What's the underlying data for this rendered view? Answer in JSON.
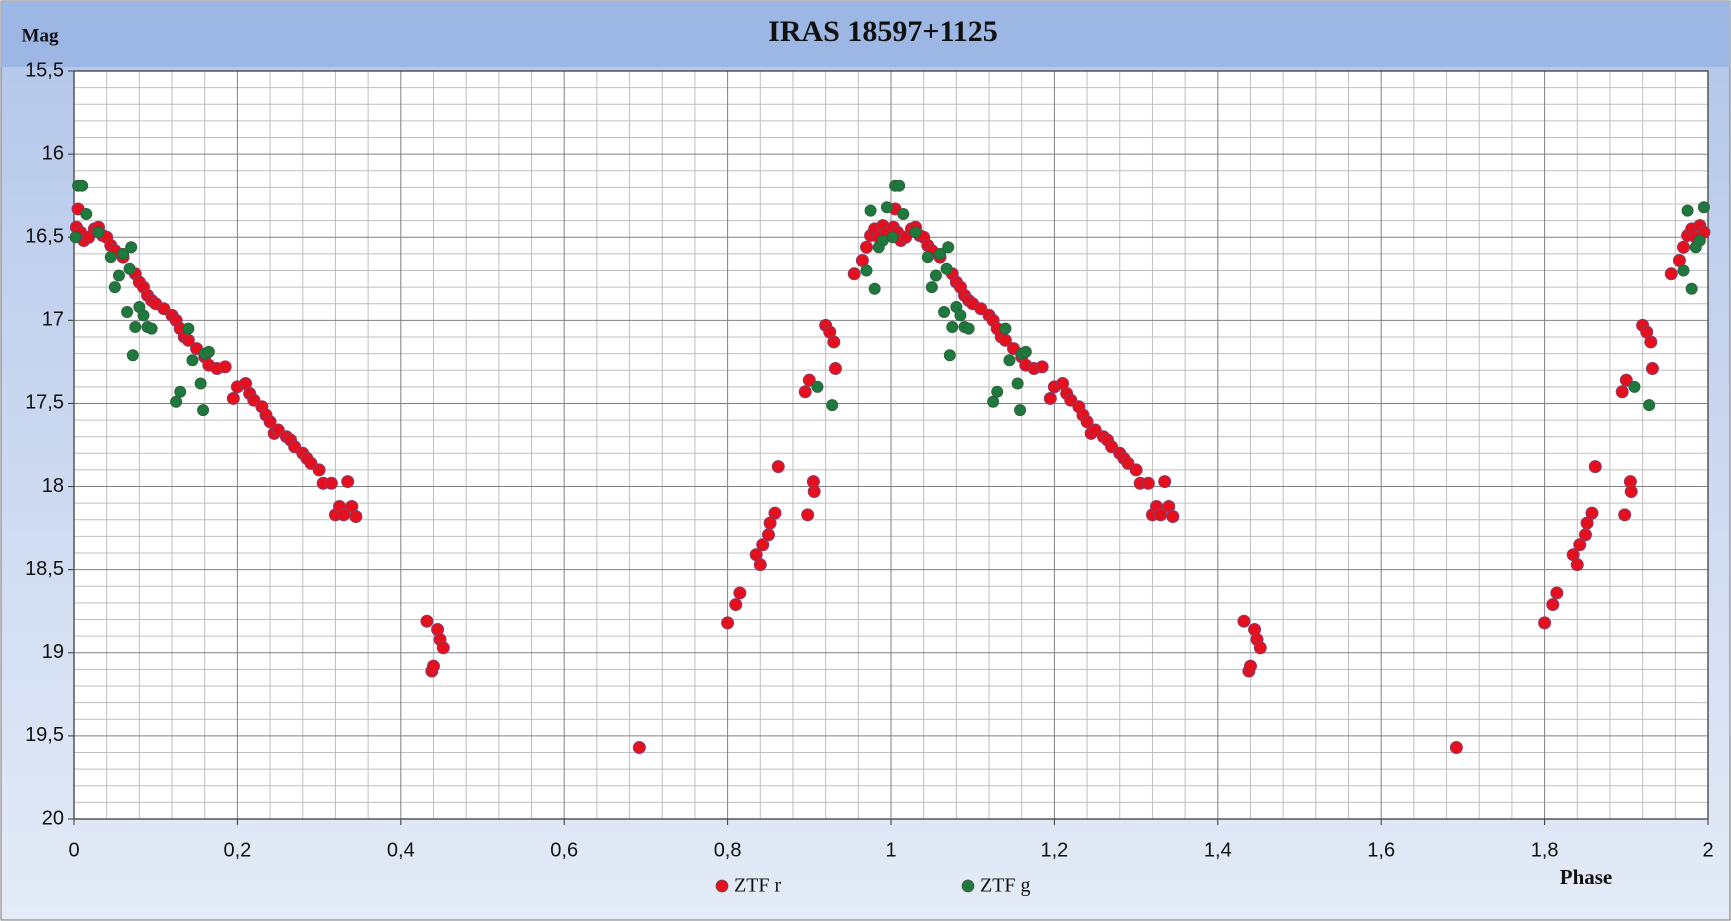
{
  "chart_data": {
    "type": "scatter",
    "title": "IRAS 18597+1125",
    "x_label": "Phase",
    "y_label": "Mag",
    "xlim": [
      0,
      2
    ],
    "ylim": [
      15.5,
      20
    ],
    "y_inverted": true,
    "grid": true,
    "legend": "bottom",
    "xticks": [
      0,
      {
        "value": 0.2,
        "label": "0,2"
      },
      {
        "value": 0.4,
        "label": "0,4"
      },
      {
        "value": 0.6,
        "label": "0,6"
      },
      {
        "value": 0.8,
        "label": "0,8"
      },
      1,
      {
        "value": 1.2,
        "label": "1,2"
      },
      {
        "value": 1.4,
        "label": "1,4"
      },
      {
        "value": 1.6,
        "label": "1,6"
      },
      {
        "value": 1.8,
        "label": "1,8"
      },
      2
    ],
    "yticks": [
      {
        "value": 15.5,
        "label": "15,5"
      },
      16,
      {
        "value": 16.5,
        "label": "16,5"
      },
      17,
      {
        "value": 17.5,
        "label": "17,5"
      },
      18,
      {
        "value": 18.5,
        "label": "18,5"
      },
      19,
      {
        "value": 19.5,
        "label": "19,5"
      },
      20
    ],
    "series": [
      {
        "name": "ZTF r",
        "color": "#e5101b",
        "x": [
          0.003,
          0.005,
          0.008,
          0.012,
          0.018,
          0.025,
          0.03,
          0.035,
          0.04,
          0.045,
          0.05,
          0.06,
          0.075,
          0.08,
          0.085,
          0.09,
          0.095,
          0.1,
          0.11,
          0.12,
          0.125,
          0.13,
          0.135,
          0.14,
          0.15,
          0.16,
          0.165,
          0.175,
          0.185,
          0.195,
          0.2,
          0.21,
          0.215,
          0.22,
          0.23,
          0.235,
          0.24,
          0.245,
          0.25,
          0.26,
          0.265,
          0.27,
          0.28,
          0.285,
          0.29,
          0.3,
          0.305,
          0.315,
          0.32,
          0.325,
          0.33,
          0.335,
          0.34,
          0.345,
          0.432,
          0.438,
          0.44,
          0.445,
          0.448,
          0.452,
          0.692,
          0.8,
          0.81,
          0.815,
          0.835,
          0.84,
          0.843,
          0.85,
          0.852,
          0.858,
          0.862,
          0.895,
          0.898,
          0.9,
          0.905,
          0.906,
          0.92,
          0.925,
          0.93,
          0.932,
          0.955,
          0.965,
          0.97,
          0.975,
          0.98,
          0.985,
          0.99,
          0.995,
          1.003,
          1.005,
          1.008,
          1.012,
          1.018,
          1.025,
          1.03,
          1.035,
          1.04,
          1.045,
          1.05,
          1.06,
          1.075,
          1.08,
          1.085,
          1.09,
          1.095,
          1.1,
          1.11,
          1.12,
          1.125,
          1.13,
          1.135,
          1.14,
          1.15,
          1.16,
          1.165,
          1.175,
          1.185,
          1.195,
          1.2,
          1.21,
          1.215,
          1.22,
          1.23,
          1.235,
          1.24,
          1.245,
          1.25,
          1.26,
          1.265,
          1.27,
          1.28,
          1.285,
          1.29,
          1.3,
          1.305,
          1.315,
          1.32,
          1.325,
          1.33,
          1.335,
          1.34,
          1.345,
          1.432,
          1.438,
          1.44,
          1.445,
          1.448,
          1.452,
          1.692,
          1.8,
          1.81,
          1.815,
          1.835,
          1.84,
          1.843,
          1.85,
          1.852,
          1.858,
          1.862,
          1.895,
          1.898,
          1.9,
          1.905,
          1.906,
          1.92,
          1.925,
          1.93,
          1.932,
          1.955,
          1.965,
          1.97,
          1.975,
          1.98,
          1.985,
          1.99,
          1.995
        ],
        "values": [
          16.44,
          16.33,
          16.47,
          16.52,
          16.5,
          16.45,
          16.44,
          16.49,
          16.5,
          16.55,
          16.58,
          16.62,
          16.72,
          16.77,
          16.8,
          16.85,
          16.88,
          16.9,
          16.93,
          16.97,
          17.0,
          17.05,
          17.1,
          17.12,
          17.17,
          17.22,
          17.27,
          17.29,
          17.28,
          17.47,
          17.4,
          17.38,
          17.44,
          17.48,
          17.52,
          17.57,
          17.61,
          17.68,
          17.66,
          17.7,
          17.72,
          17.76,
          17.8,
          17.83,
          17.86,
          17.9,
          17.98,
          17.98,
          18.17,
          18.12,
          18.17,
          17.97,
          18.12,
          18.18,
          18.81,
          19.11,
          19.08,
          18.86,
          18.92,
          18.97,
          19.57,
          18.82,
          18.71,
          18.64,
          18.41,
          18.47,
          18.35,
          18.29,
          18.22,
          18.16,
          17.88,
          17.43,
          18.17,
          17.36,
          17.97,
          18.03,
          17.03,
          17.07,
          17.13,
          17.29,
          16.72,
          16.64,
          16.56,
          16.49,
          16.45,
          16.5,
          16.43,
          16.47,
          16.44,
          16.33,
          16.47,
          16.52,
          16.5,
          16.45,
          16.44,
          16.49,
          16.5,
          16.55,
          16.58,
          16.62,
          16.72,
          16.77,
          16.8,
          16.85,
          16.88,
          16.9,
          16.93,
          16.97,
          17.0,
          17.05,
          17.1,
          17.12,
          17.17,
          17.22,
          17.27,
          17.29,
          17.28,
          17.47,
          17.4,
          17.38,
          17.44,
          17.48,
          17.52,
          17.57,
          17.61,
          17.68,
          17.66,
          17.7,
          17.72,
          17.76,
          17.8,
          17.83,
          17.86,
          17.9,
          17.98,
          17.98,
          18.17,
          18.12,
          18.17,
          17.97,
          18.12,
          18.18,
          18.81,
          19.11,
          19.08,
          18.86,
          18.92,
          18.97,
          19.57,
          18.82,
          18.71,
          18.64,
          18.41,
          18.47,
          18.35,
          18.29,
          18.22,
          18.16,
          17.88,
          17.43,
          18.17,
          17.36,
          17.97,
          18.03,
          17.03,
          17.07,
          17.13,
          17.29,
          16.72,
          16.64,
          16.56,
          16.49,
          16.45,
          16.5,
          16.43,
          16.47
        ]
      },
      {
        "name": "ZTF g",
        "color": "#1e7a3c",
        "x": [
          0.002,
          0.005,
          0.01,
          0.015,
          0.03,
          0.045,
          0.05,
          0.055,
          0.06,
          0.065,
          0.068,
          0.07,
          0.072,
          0.075,
          0.08,
          0.085,
          0.09,
          0.095,
          0.125,
          0.13,
          0.14,
          0.145,
          0.155,
          0.158,
          0.16,
          0.165,
          0.91,
          0.928,
          0.97,
          0.975,
          0.98,
          0.985,
          0.99,
          0.995,
          1.002,
          1.005,
          1.01,
          1.015,
          1.03,
          1.045,
          1.05,
          1.055,
          1.06,
          1.065,
          1.068,
          1.07,
          1.072,
          1.075,
          1.08,
          1.085,
          1.09,
          1.095,
          1.125,
          1.13,
          1.14,
          1.145,
          1.155,
          1.158,
          1.16,
          1.165,
          1.91,
          1.928,
          1.97,
          1.975,
          1.98,
          1.985,
          1.99,
          1.995
        ],
        "values": [
          16.5,
          16.19,
          16.19,
          16.36,
          16.47,
          16.62,
          16.8,
          16.73,
          16.6,
          16.95,
          16.69,
          16.56,
          17.21,
          17.04,
          16.92,
          16.97,
          17.04,
          17.05,
          17.49,
          17.43,
          17.05,
          17.24,
          17.38,
          17.54,
          17.2,
          17.19,
          17.4,
          17.51,
          16.7,
          16.34,
          16.81,
          16.56,
          16.52,
          16.32,
          16.5,
          16.19,
          16.19,
          16.36,
          16.47,
          16.62,
          16.8,
          16.73,
          16.6,
          16.95,
          16.69,
          16.56,
          17.21,
          17.04,
          16.92,
          16.97,
          17.04,
          17.05,
          17.49,
          17.43,
          17.05,
          17.24,
          17.38,
          17.54,
          17.2,
          17.19,
          17.4,
          17.51,
          16.7,
          16.34,
          16.81,
          16.56,
          16.52,
          16.32
        ]
      }
    ]
  }
}
